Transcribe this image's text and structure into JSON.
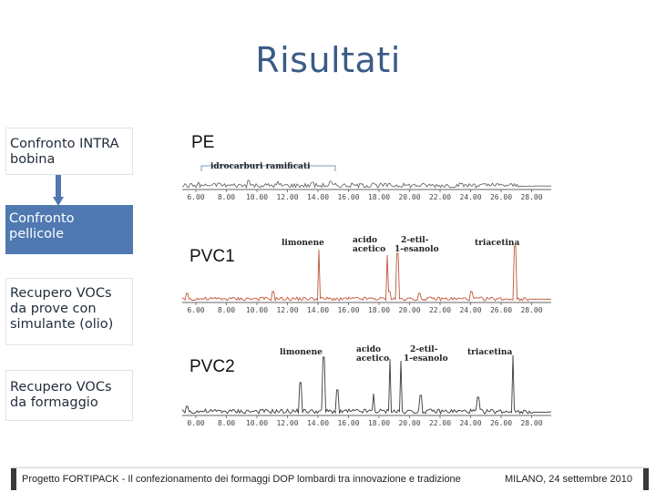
{
  "slide": {
    "title": "Risultati"
  },
  "sidebar": {
    "items": [
      {
        "label": "Confronto INTRA bobina"
      },
      {
        "label": "Confronto pellicole"
      },
      {
        "label": "Recupero VOCs da prove con simulante (olio)"
      },
      {
        "label": "Recupero VOCs da formaggio"
      }
    ]
  },
  "chromatograms": {
    "ticks": [
      "6.00",
      "8.00",
      "10.00",
      "12.00",
      "14.00",
      "16.00",
      "18.00",
      "20.00",
      "22.00",
      "24.00",
      "26.00",
      "28.00"
    ],
    "ticks_pvc2": [
      "0.00",
      "8.00",
      "10.00",
      "12.00",
      "14.00",
      "16.00",
      "18.00",
      "20.00",
      "22.00",
      "24.00",
      "26.00",
      "28.00"
    ],
    "pe": {
      "label": "PE",
      "annotation": "idrocarburi ramificati",
      "color": "#5a5a5a"
    },
    "pvc1": {
      "label": "PVC1",
      "color": "#c0553a",
      "peaks": {
        "limonene": "limonene",
        "acido": "acido",
        "acetico": "acetico",
        "etil1": "2-etil-",
        "etil2": "1-esanolo",
        "triacetina": "triacetina"
      }
    },
    "pvc2": {
      "label": "PVC2",
      "color": "#3a3a3a",
      "peaks": {
        "limonene": "limonene",
        "acido": "acido",
        "acetico": "acetico",
        "etil1": "2-etil-",
        "etil2": "1-esanolo",
        "triacetina": "triacetina"
      }
    }
  },
  "footer": {
    "left": "Progetto FORTIPACK - Il confezionamento dei formaggi DOP lombardi tra innovazione e tradizione",
    "right": "MILANO, 24 settembre 2010"
  }
}
